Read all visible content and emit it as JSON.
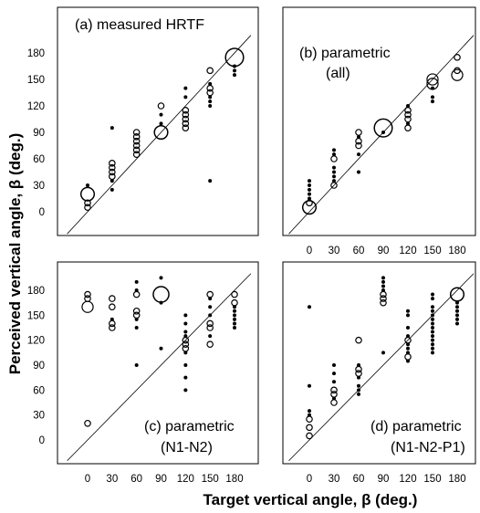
{
  "figure": {
    "ylabel": "Perceived vertical angle, β (deg.)",
    "xlabel": "Target vertical angle, β (deg.)"
  },
  "chart_data": [
    {
      "type": "scatter",
      "title_line1": "(a) measured HRTF",
      "title_line2": "",
      "x_ticks": [
        0,
        30,
        60,
        90,
        120,
        150,
        180
      ],
      "y_ticks": [
        0,
        30,
        60,
        90,
        120,
        150,
        180
      ],
      "show_x_ticks": false,
      "show_y_ticks": true,
      "xlim": [
        -25,
        200
      ],
      "ylim": [
        -25,
        200
      ],
      "diagonal": true,
      "points": [
        {
          "x": 0,
          "y": 30,
          "n": 1
        },
        {
          "x": 0,
          "y": 20,
          "n": 4
        },
        {
          "x": 0,
          "y": 10,
          "n": 2
        },
        {
          "x": 0,
          "y": 5,
          "n": 2
        },
        {
          "x": 30,
          "y": 95,
          "n": 1
        },
        {
          "x": 30,
          "y": 55,
          "n": 2
        },
        {
          "x": 30,
          "y": 50,
          "n": 2
        },
        {
          "x": 30,
          "y": 45,
          "n": 2
        },
        {
          "x": 30,
          "y": 40,
          "n": 2
        },
        {
          "x": 30,
          "y": 35,
          "n": 1
        },
        {
          "x": 30,
          "y": 25,
          "n": 1
        },
        {
          "x": 60,
          "y": 90,
          "n": 2
        },
        {
          "x": 60,
          "y": 85,
          "n": 2
        },
        {
          "x": 60,
          "y": 80,
          "n": 2
        },
        {
          "x": 60,
          "y": 75,
          "n": 2
        },
        {
          "x": 60,
          "y": 70,
          "n": 2
        },
        {
          "x": 60,
          "y": 65,
          "n": 2
        },
        {
          "x": 90,
          "y": 120,
          "n": 2
        },
        {
          "x": 90,
          "y": 110,
          "n": 1
        },
        {
          "x": 90,
          "y": 100,
          "n": 1
        },
        {
          "x": 90,
          "y": 90,
          "n": 4
        },
        {
          "x": 120,
          "y": 140,
          "n": 1
        },
        {
          "x": 120,
          "y": 130,
          "n": 1
        },
        {
          "x": 120,
          "y": 115,
          "n": 2
        },
        {
          "x": 120,
          "y": 110,
          "n": 2
        },
        {
          "x": 120,
          "y": 105,
          "n": 2
        },
        {
          "x": 120,
          "y": 100,
          "n": 2
        },
        {
          "x": 120,
          "y": 95,
          "n": 2
        },
        {
          "x": 150,
          "y": 160,
          "n": 2
        },
        {
          "x": 150,
          "y": 145,
          "n": 1
        },
        {
          "x": 150,
          "y": 140,
          "n": 2
        },
        {
          "x": 150,
          "y": 135,
          "n": 2
        },
        {
          "x": 150,
          "y": 130,
          "n": 1
        },
        {
          "x": 150,
          "y": 125,
          "n": 1
        },
        {
          "x": 150,
          "y": 120,
          "n": 1
        },
        {
          "x": 150,
          "y": 35,
          "n": 1
        },
        {
          "x": 180,
          "y": 175,
          "n": 6
        },
        {
          "x": 180,
          "y": 165,
          "n": 1
        },
        {
          "x": 180,
          "y": 160,
          "n": 1
        },
        {
          "x": 180,
          "y": 155,
          "n": 1
        }
      ]
    },
    {
      "type": "scatter",
      "title_line1": "(b) parametric",
      "title_line2": "(all)",
      "x_ticks": [
        0,
        30,
        60,
        90,
        120,
        150,
        180
      ],
      "y_ticks": [
        0,
        30,
        60,
        90,
        120,
        150,
        180
      ],
      "show_x_ticks": true,
      "show_y_ticks": false,
      "xlim": [
        -25,
        200
      ],
      "ylim": [
        -25,
        200
      ],
      "diagonal": true,
      "points": [
        {
          "x": 0,
          "y": 35,
          "n": 1
        },
        {
          "x": 0,
          "y": 30,
          "n": 1
        },
        {
          "x": 0,
          "y": 25,
          "n": 1
        },
        {
          "x": 0,
          "y": 20,
          "n": 1
        },
        {
          "x": 0,
          "y": 15,
          "n": 1
        },
        {
          "x": 0,
          "y": 10,
          "n": 2
        },
        {
          "x": 0,
          "y": 5,
          "n": 4
        },
        {
          "x": 30,
          "y": 70,
          "n": 1
        },
        {
          "x": 30,
          "y": 65,
          "n": 1
        },
        {
          "x": 30,
          "y": 60,
          "n": 2
        },
        {
          "x": 30,
          "y": 50,
          "n": 1
        },
        {
          "x": 30,
          "y": 45,
          "n": 1
        },
        {
          "x": 30,
          "y": 40,
          "n": 1
        },
        {
          "x": 30,
          "y": 35,
          "n": 1
        },
        {
          "x": 30,
          "y": 30,
          "n": 2
        },
        {
          "x": 60,
          "y": 90,
          "n": 2
        },
        {
          "x": 60,
          "y": 85,
          "n": 1
        },
        {
          "x": 60,
          "y": 80,
          "n": 2
        },
        {
          "x": 60,
          "y": 75,
          "n": 2
        },
        {
          "x": 60,
          "y": 65,
          "n": 1
        },
        {
          "x": 60,
          "y": 45,
          "n": 1
        },
        {
          "x": 90,
          "y": 95,
          "n": 6
        },
        {
          "x": 90,
          "y": 90,
          "n": 1
        },
        {
          "x": 120,
          "y": 120,
          "n": 1
        },
        {
          "x": 120,
          "y": 115,
          "n": 2
        },
        {
          "x": 120,
          "y": 110,
          "n": 2
        },
        {
          "x": 120,
          "y": 105,
          "n": 2
        },
        {
          "x": 120,
          "y": 100,
          "n": 1
        },
        {
          "x": 120,
          "y": 95,
          "n": 2
        },
        {
          "x": 150,
          "y": 150,
          "n": 3
        },
        {
          "x": 150,
          "y": 145,
          "n": 3
        },
        {
          "x": 150,
          "y": 140,
          "n": 1
        },
        {
          "x": 150,
          "y": 130,
          "n": 1
        },
        {
          "x": 150,
          "y": 125,
          "n": 1
        },
        {
          "x": 180,
          "y": 175,
          "n": 2
        },
        {
          "x": 180,
          "y": 160,
          "n": 2
        },
        {
          "x": 180,
          "y": 155,
          "n": 3
        }
      ]
    },
    {
      "type": "scatter",
      "title_line1": "(c) parametric",
      "title_line2": "(N1-N2)",
      "x_ticks": [
        0,
        30,
        60,
        90,
        120,
        150,
        180
      ],
      "y_ticks": [
        0,
        30,
        60,
        90,
        120,
        150,
        180
      ],
      "show_x_ticks": true,
      "show_y_ticks": true,
      "xlim": [
        -25,
        200
      ],
      "ylim": [
        -25,
        200
      ],
      "diagonal": true,
      "points": [
        {
          "x": 0,
          "y": 175,
          "n": 2
        },
        {
          "x": 0,
          "y": 170,
          "n": 2
        },
        {
          "x": 0,
          "y": 160,
          "n": 3
        },
        {
          "x": 0,
          "y": 20,
          "n": 2
        },
        {
          "x": 30,
          "y": 170,
          "n": 2
        },
        {
          "x": 30,
          "y": 160,
          "n": 2
        },
        {
          "x": 30,
          "y": 145,
          "n": 1
        },
        {
          "x": 30,
          "y": 140,
          "n": 2
        },
        {
          "x": 30,
          "y": 135,
          "n": 2
        },
        {
          "x": 60,
          "y": 190,
          "n": 1
        },
        {
          "x": 60,
          "y": 180,
          "n": 1
        },
        {
          "x": 60,
          "y": 175,
          "n": 2
        },
        {
          "x": 60,
          "y": 155,
          "n": 2
        },
        {
          "x": 60,
          "y": 150,
          "n": 2
        },
        {
          "x": 60,
          "y": 145,
          "n": 1
        },
        {
          "x": 60,
          "y": 135,
          "n": 1
        },
        {
          "x": 60,
          "y": 90,
          "n": 1
        },
        {
          "x": 90,
          "y": 195,
          "n": 1
        },
        {
          "x": 90,
          "y": 175,
          "n": 5
        },
        {
          "x": 90,
          "y": 165,
          "n": 1
        },
        {
          "x": 90,
          "y": 110,
          "n": 1
        },
        {
          "x": 120,
          "y": 150,
          "n": 1
        },
        {
          "x": 120,
          "y": 140,
          "n": 1
        },
        {
          "x": 120,
          "y": 130,
          "n": 1
        },
        {
          "x": 120,
          "y": 125,
          "n": 1
        },
        {
          "x": 120,
          "y": 120,
          "n": 2
        },
        {
          "x": 120,
          "y": 115,
          "n": 2
        },
        {
          "x": 120,
          "y": 110,
          "n": 2
        },
        {
          "x": 120,
          "y": 105,
          "n": 1
        },
        {
          "x": 120,
          "y": 90,
          "n": 1
        },
        {
          "x": 120,
          "y": 75,
          "n": 1
        },
        {
          "x": 120,
          "y": 60,
          "n": 1
        },
        {
          "x": 150,
          "y": 175,
          "n": 2
        },
        {
          "x": 150,
          "y": 170,
          "n": 1
        },
        {
          "x": 150,
          "y": 160,
          "n": 1
        },
        {
          "x": 150,
          "y": 150,
          "n": 1
        },
        {
          "x": 150,
          "y": 140,
          "n": 2
        },
        {
          "x": 150,
          "y": 135,
          "n": 2
        },
        {
          "x": 150,
          "y": 125,
          "n": 1
        },
        {
          "x": 150,
          "y": 115,
          "n": 2
        },
        {
          "x": 180,
          "y": 175,
          "n": 2
        },
        {
          "x": 180,
          "y": 165,
          "n": 2
        },
        {
          "x": 180,
          "y": 160,
          "n": 1
        },
        {
          "x": 180,
          "y": 155,
          "n": 1
        },
        {
          "x": 180,
          "y": 150,
          "n": 1
        },
        {
          "x": 180,
          "y": 145,
          "n": 1
        },
        {
          "x": 180,
          "y": 140,
          "n": 1
        },
        {
          "x": 180,
          "y": 135,
          "n": 1
        }
      ]
    },
    {
      "type": "scatter",
      "title_line1": "(d) parametric",
      "title_line2": "(N1-N2-P1)",
      "x_ticks": [
        0,
        30,
        60,
        90,
        120,
        150,
        180
      ],
      "y_ticks": [
        0,
        30,
        60,
        90,
        120,
        150,
        180
      ],
      "show_x_ticks": true,
      "show_y_ticks": false,
      "xlim": [
        -25,
        200
      ],
      "ylim": [
        -25,
        200
      ],
      "diagonal": true,
      "points": [
        {
          "x": 0,
          "y": 160,
          "n": 1
        },
        {
          "x": 0,
          "y": 65,
          "n": 1
        },
        {
          "x": 0,
          "y": 35,
          "n": 1
        },
        {
          "x": 0,
          "y": 30,
          "n": 1
        },
        {
          "x": 0,
          "y": 25,
          "n": 2
        },
        {
          "x": 0,
          "y": 15,
          "n": 2
        },
        {
          "x": 0,
          "y": 5,
          "n": 2
        },
        {
          "x": 30,
          "y": 90,
          "n": 1
        },
        {
          "x": 30,
          "y": 80,
          "n": 1
        },
        {
          "x": 30,
          "y": 70,
          "n": 1
        },
        {
          "x": 30,
          "y": 60,
          "n": 2
        },
        {
          "x": 30,
          "y": 55,
          "n": 2
        },
        {
          "x": 30,
          "y": 50,
          "n": 1
        },
        {
          "x": 30,
          "y": 45,
          "n": 2
        },
        {
          "x": 60,
          "y": 120,
          "n": 2
        },
        {
          "x": 60,
          "y": 90,
          "n": 1
        },
        {
          "x": 60,
          "y": 85,
          "n": 2
        },
        {
          "x": 60,
          "y": 80,
          "n": 2
        },
        {
          "x": 60,
          "y": 75,
          "n": 1
        },
        {
          "x": 60,
          "y": 65,
          "n": 1
        },
        {
          "x": 60,
          "y": 60,
          "n": 1
        },
        {
          "x": 60,
          "y": 55,
          "n": 1
        },
        {
          "x": 90,
          "y": 195,
          "n": 1
        },
        {
          "x": 90,
          "y": 190,
          "n": 1
        },
        {
          "x": 90,
          "y": 185,
          "n": 1
        },
        {
          "x": 90,
          "y": 180,
          "n": 1
        },
        {
          "x": 90,
          "y": 175,
          "n": 2
        },
        {
          "x": 90,
          "y": 170,
          "n": 2
        },
        {
          "x": 90,
          "y": 165,
          "n": 2
        },
        {
          "x": 90,
          "y": 105,
          "n": 1
        },
        {
          "x": 120,
          "y": 155,
          "n": 1
        },
        {
          "x": 120,
          "y": 150,
          "n": 1
        },
        {
          "x": 120,
          "y": 135,
          "n": 1
        },
        {
          "x": 120,
          "y": 125,
          "n": 1
        },
        {
          "x": 120,
          "y": 120,
          "n": 2
        },
        {
          "x": 120,
          "y": 115,
          "n": 1
        },
        {
          "x": 120,
          "y": 110,
          "n": 1
        },
        {
          "x": 120,
          "y": 105,
          "n": 1
        },
        {
          "x": 120,
          "y": 100,
          "n": 2
        },
        {
          "x": 120,
          "y": 95,
          "n": 1
        },
        {
          "x": 150,
          "y": 175,
          "n": 1
        },
        {
          "x": 150,
          "y": 170,
          "n": 1
        },
        {
          "x": 150,
          "y": 160,
          "n": 1
        },
        {
          "x": 150,
          "y": 155,
          "n": 1
        },
        {
          "x": 150,
          "y": 150,
          "n": 1
        },
        {
          "x": 150,
          "y": 145,
          "n": 1
        },
        {
          "x": 150,
          "y": 140,
          "n": 1
        },
        {
          "x": 150,
          "y": 135,
          "n": 1
        },
        {
          "x": 150,
          "y": 130,
          "n": 1
        },
        {
          "x": 150,
          "y": 125,
          "n": 1
        },
        {
          "x": 150,
          "y": 120,
          "n": 1
        },
        {
          "x": 150,
          "y": 115,
          "n": 1
        },
        {
          "x": 150,
          "y": 110,
          "n": 1
        },
        {
          "x": 150,
          "y": 105,
          "n": 1
        },
        {
          "x": 180,
          "y": 175,
          "n": 4
        },
        {
          "x": 180,
          "y": 165,
          "n": 1
        },
        {
          "x": 180,
          "y": 160,
          "n": 1
        },
        {
          "x": 180,
          "y": 155,
          "n": 1
        },
        {
          "x": 180,
          "y": 150,
          "n": 1
        },
        {
          "x": 180,
          "y": 145,
          "n": 1
        },
        {
          "x": 180,
          "y": 140,
          "n": 1
        }
      ]
    }
  ]
}
